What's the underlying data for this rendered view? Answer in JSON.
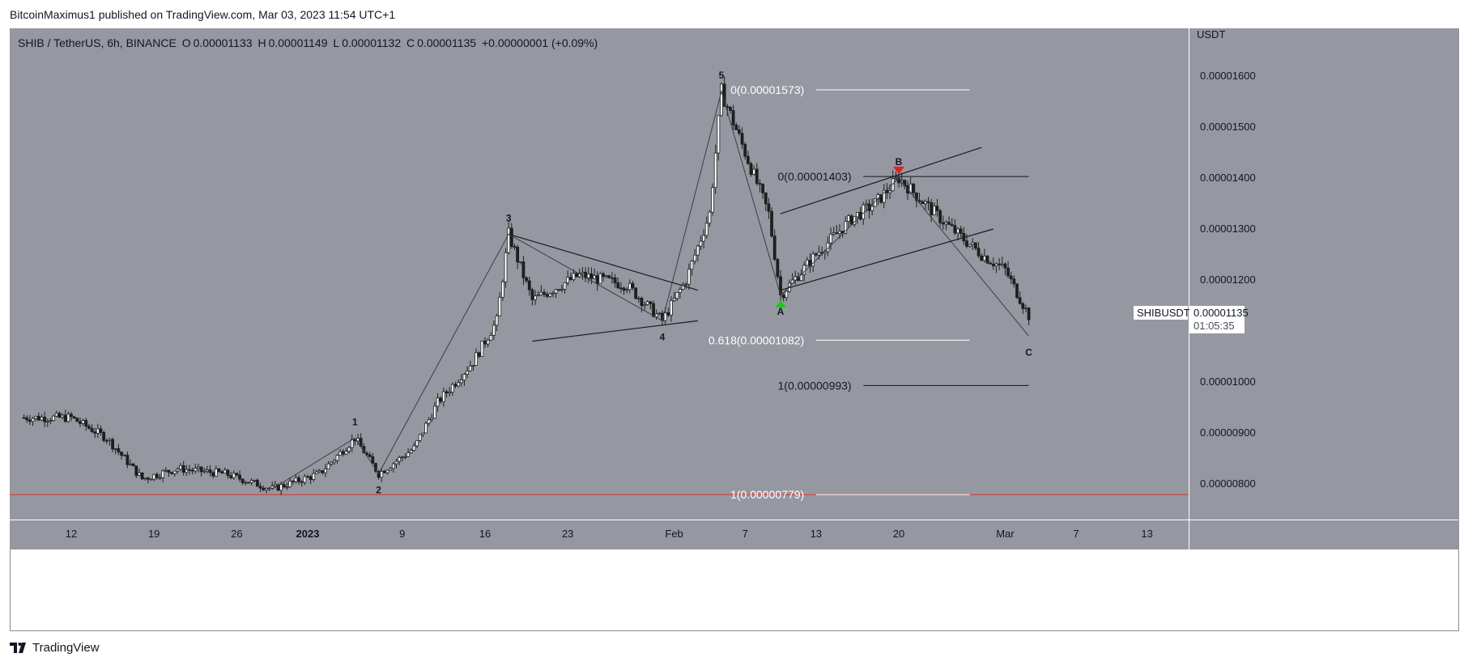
{
  "header": {
    "publisher": "BitcoinMaximus1 published on TradingView.com, Mar 03, 2023 11:54 UTC+1"
  },
  "legend": {
    "symbol": "SHIB / TetherUS, 6h, BINANCE",
    "o_label": "O",
    "o_value": "0.00001133",
    "h_label": "H",
    "h_value": "0.00001149",
    "l_label": "L",
    "l_value": "0.00001132",
    "c_label": "C",
    "c_value": "0.00001135",
    "change": "+0.00000001 (+0.09%)"
  },
  "price_tag": {
    "symbol": "SHIBUSDT",
    "price": "0.00001135",
    "countdown": "01:05:35"
  },
  "footer": {
    "brand": "TradingView"
  },
  "colors": {
    "background": "#9598a1",
    "candle": "#1f1f1f",
    "support_line": "#e0312e",
    "marker_up": "#22c51e",
    "marker_down": "#e61e1e",
    "fib_light": "#ffffff",
    "fib_dark": "#131722"
  },
  "chart_data": {
    "type": "candlestick",
    "title": "SHIB / TetherUS, 6h, BINANCE",
    "ylabel": "USDT",
    "ylim": [
      7.1e-06,
      1.65e-05
    ],
    "y_ticks": [
      "0.00001600",
      "0.00001500",
      "0.00001400",
      "0.00001300",
      "0.00001200",
      "0.00001000",
      "0.00000900",
      "0.00000800"
    ],
    "x_ticks": [
      "12",
      "19",
      "26",
      "2023",
      "9",
      "16",
      "23",
      "Feb",
      "7",
      "13",
      "20",
      "Mar",
      "7",
      "13"
    ],
    "grid": false,
    "price_path": [
      [
        "2022-12-08",
        9.3e-06
      ],
      [
        "2022-12-12",
        9.3e-06
      ],
      [
        "2022-12-15",
        8.9e-06
      ],
      [
        "2022-12-18",
        8.1e-06
      ],
      [
        "2022-12-21",
        8.3e-06
      ],
      [
        "2022-12-25",
        8.2e-06
      ],
      [
        "2022-12-29",
        7.9e-06
      ],
      [
        "2023-01-02",
        8.2e-06
      ],
      [
        "2023-01-05",
        8.9e-06
      ],
      [
        "2023-01-07",
        8.2e-06
      ],
      [
        "2023-01-10",
        8.7e-06
      ],
      [
        "2023-01-12",
        9.6e-06
      ],
      [
        "2023-01-15",
        1.04e-05
      ],
      [
        "2023-01-17",
        1.12e-05
      ],
      [
        "2023-01-18",
        1.29e-05
      ],
      [
        "2023-01-20",
        1.16e-05
      ],
      [
        "2023-01-24",
        1.21e-05
      ],
      [
        "2023-01-28",
        1.19e-05
      ],
      [
        "2023-01-31",
        1.12e-05
      ],
      [
        "2023-02-02",
        1.2e-05
      ],
      [
        "2023-02-04",
        1.33e-05
      ],
      [
        "2023-02-05",
        1.57e-05
      ],
      [
        "2023-02-07",
        1.45e-05
      ],
      [
        "2023-02-09",
        1.33e-05
      ],
      [
        "2023-02-10",
        1.17e-05
      ],
      [
        "2023-02-13",
        1.25e-05
      ],
      [
        "2023-02-16",
        1.32e-05
      ],
      [
        "2023-02-18",
        1.35e-05
      ],
      [
        "2023-02-20",
        1.4e-05
      ],
      [
        "2023-02-24",
        1.31e-05
      ],
      [
        "2023-02-27",
        1.25e-05
      ],
      [
        "2023-03-01",
        1.22e-05
      ],
      [
        "2023-03-03",
        1.13e-05
      ]
    ],
    "wave_labels": [
      {
        "label": "1",
        "date": "2023-01-05",
        "price": 8.9e-06,
        "pos": "above"
      },
      {
        "label": "2",
        "date": "2023-01-07",
        "price": 8.2e-06,
        "pos": "below"
      },
      {
        "label": "3",
        "date": "2023-01-18",
        "price": 1.29e-05,
        "pos": "above"
      },
      {
        "label": "4",
        "date": "2023-01-31",
        "price": 1.12e-05,
        "pos": "below"
      },
      {
        "label": "5",
        "date": "2023-02-05",
        "price": 1.57e-05,
        "pos": "above"
      },
      {
        "label": "A",
        "date": "2023-02-10",
        "price": 1.17e-05,
        "pos": "below"
      },
      {
        "label": "B",
        "date": "2023-02-20",
        "price": 1.4e-05,
        "pos": "above"
      },
      {
        "label": "C",
        "date": "2023-03-03",
        "price": 1.09e-05,
        "pos": "below"
      }
    ],
    "fib_levels": [
      {
        "label": "0(0.00001573)",
        "price": 1.573e-05,
        "tone": "light"
      },
      {
        "label": "0.618(0.00001082)",
        "price": 1.082e-05,
        "tone": "light"
      },
      {
        "label": "1(0.00000779)",
        "price": 7.79e-06,
        "tone": "light"
      },
      {
        "label": "0(0.00001403)",
        "price": 1.403e-05,
        "tone": "dark"
      },
      {
        "label": "1(0.00000993)",
        "price": 9.93e-06,
        "tone": "dark"
      }
    ],
    "support_price": 7.79e-06,
    "last_price": 1.135e-05
  }
}
